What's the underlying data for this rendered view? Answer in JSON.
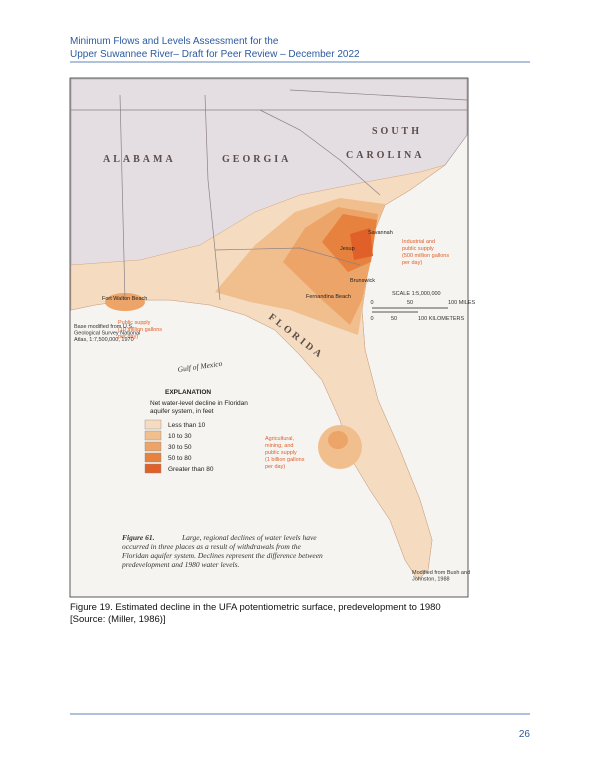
{
  "header": {
    "line1": "Minimum Flows and Levels Assessment for the",
    "line2": "Upper Suwannee River– Draft for Peer Review – December 2022"
  },
  "figure": {
    "map_labels": {
      "alabama": "ALABAMA",
      "georgia": "GEORGIA",
      "south": "SOUTH",
      "carolina": "CAROLINA",
      "florida": "FLORIDA",
      "gulf": "Gulf of Mexico"
    },
    "places": [
      "Savannah",
      "Jesup",
      "Brunswick",
      "Fernandina Beach",
      "Fort Walton Beach"
    ],
    "annotations": [
      [
        "Industrial and",
        "public supply",
        "(500 million gallons",
        "per day)"
      ],
      [
        "Public supply",
        "(10 million gallons",
        "per day)"
      ],
      [
        "Agricultural,",
        "mining, and",
        "public supply",
        "(1 billion gallons",
        "per day)"
      ]
    ],
    "scale": {
      "title": "SCALE 1:5,000,000",
      "miles": [
        "0",
        "50",
        "100 MILES"
      ],
      "km": [
        "0",
        "50",
        "100 KILOMETERS"
      ]
    },
    "credits": [
      [
        "Base modified from U.S.",
        "Geological Survey National",
        "Atlas, 1:7,500,000, 1970"
      ],
      [
        "Modified from Bush and",
        "Johnston, 1988"
      ]
    ],
    "legend": {
      "title": "EXPLANATION",
      "subtitle": [
        "Net water-level decline in Floridan",
        "aquifer system, in feet"
      ],
      "items": [
        "Less than 10",
        "10 to 30",
        "30 to 50",
        "50 to 80",
        "Greater than 80"
      ]
    },
    "figure_label": "Figure 61.",
    "figure_text": [
      "Large, regional declines of water levels have",
      "occurred in three places as a result of withdrawals from the",
      "Floridan aquifer system. Declines represent the difference between",
      "predevelopment and 1980 water levels."
    ]
  },
  "caption": [
    "Figure 19. Estimated decline in the UFA potentiometric surface, predevelopment to 1980",
    "[Source: (Miller, 1986)]"
  ],
  "footer": {
    "page_number": "26"
  }
}
